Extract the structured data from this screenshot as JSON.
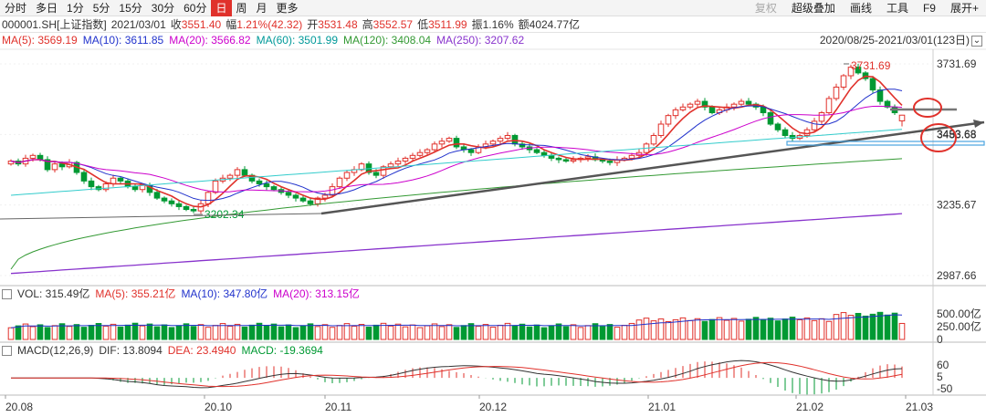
{
  "toolbar": {
    "timeframes": [
      "分时",
      "多日",
      "1分",
      "5分",
      "15分",
      "30分",
      "60分",
      "日",
      "周",
      "月",
      "更多"
    ],
    "active_index": 7,
    "right_items": [
      "复权",
      "超级叠加",
      "画线",
      "工具",
      "F9",
      "展开+"
    ]
  },
  "quote": {
    "symbol": "000001.SH[上证指数]",
    "date": "2021/03/01",
    "close_label": "收",
    "close": "3551.40",
    "change_label": "幅",
    "change": "1.21%(42.32)",
    "open_label": "开",
    "open": "3531.48",
    "high_label": "高",
    "high": "3552.57",
    "low_label": "低",
    "low": "3511.99",
    "amplitude_label": "振",
    "amplitude": "1.16%",
    "amount_label": "额",
    "amount": "4024.77亿"
  },
  "ma": [
    {
      "label": "MA(5): 3569.19",
      "color": "#e0312b"
    },
    {
      "label": "MA(10): 3611.85",
      "color": "#2233cc"
    },
    {
      "label": "MA(20): 3566.82",
      "color": "#cc00cc"
    },
    {
      "label": "MA(60): 3501.99",
      "color": "#009999"
    },
    {
      "label": "MA(120): 3408.04",
      "color": "#339933"
    },
    {
      "label": "MA(250): 3207.62",
      "color": "#8833cc"
    }
  ],
  "range_text": "2020/08/25-2021/03/01(123日)",
  "range_icon": "⌄",
  "price_axis": [
    "3731.69",
    "3483.68",
    "3235.67",
    "2987.66"
  ],
  "price_annotations": {
    "high": "3731.69",
    "low": "3202.34",
    "right": "3453.68"
  },
  "volume": {
    "labels": [
      {
        "text": "VOL: 315.49亿",
        "color": "#333"
      },
      {
        "text": "MA(5): 355.21亿",
        "color": "#e0312b"
      },
      {
        "text": "MA(10): 347.80亿",
        "color": "#2233cc"
      },
      {
        "text": "MA(20): 313.15亿",
        "color": "#cc00cc"
      }
    ],
    "axis": [
      "500.00亿",
      "250.00亿",
      "0"
    ]
  },
  "macd": {
    "labels": [
      {
        "text": "MACD(12,26,9)",
        "color": "#333"
      },
      {
        "text": "DIF: 13.8094",
        "color": "#333"
      },
      {
        "text": "DEA: 23.4940",
        "color": "#e0312b"
      },
      {
        "text": "MACD: -19.3694",
        "color": "#009933"
      }
    ],
    "axis": [
      "60",
      "5",
      "-50"
    ]
  },
  "date_axis": [
    "20.08",
    "20.10",
    "20.11",
    "20.12",
    "21.01",
    "21.02",
    "21.03"
  ],
  "colors": {
    "up": "#e0312b",
    "down": "#009933",
    "active_tab": "#e0312b"
  },
  "chart_data": {
    "type": "candlestick",
    "price_range": [
      2987.66,
      3731.69
    ],
    "high_point": 3731.69,
    "low_point": 3202.34,
    "closes_approx": [
      3390,
      3380,
      3400,
      3410,
      3395,
      3360,
      3380,
      3370,
      3385,
      3350,
      3320,
      3300,
      3290,
      3310,
      3330,
      3320,
      3300,
      3290,
      3305,
      3280,
      3260,
      3250,
      3240,
      3230,
      3220,
      3215,
      3240,
      3280,
      3320,
      3330,
      3340,
      3360,
      3340,
      3320,
      3310,
      3300,
      3290,
      3280,
      3270,
      3260,
      3250,
      3240,
      3260,
      3270,
      3300,
      3330,
      3350,
      3360,
      3380,
      3350,
      3340,
      3370,
      3380,
      3390,
      3400,
      3410,
      3420,
      3430,
      3450,
      3460,
      3470,
      3440,
      3430,
      3420,
      3440,
      3450,
      3460,
      3470,
      3480,
      3450,
      3440,
      3430,
      3420,
      3410,
      3400,
      3395,
      3390,
      3395,
      3400,
      3405,
      3395,
      3390,
      3385,
      3395,
      3400,
      3410,
      3420,
      3450,
      3480,
      3520,
      3550,
      3570,
      3580,
      3590,
      3600,
      3580,
      3560,
      3570,
      3580,
      3590,
      3600,
      3590,
      3580,
      3560,
      3520,
      3500,
      3480,
      3470,
      3480,
      3500,
      3530,
      3560,
      3610,
      3650,
      3690,
      3720,
      3700,
      3680,
      3640,
      3600,
      3580,
      3560,
      3551
    ]
  }
}
